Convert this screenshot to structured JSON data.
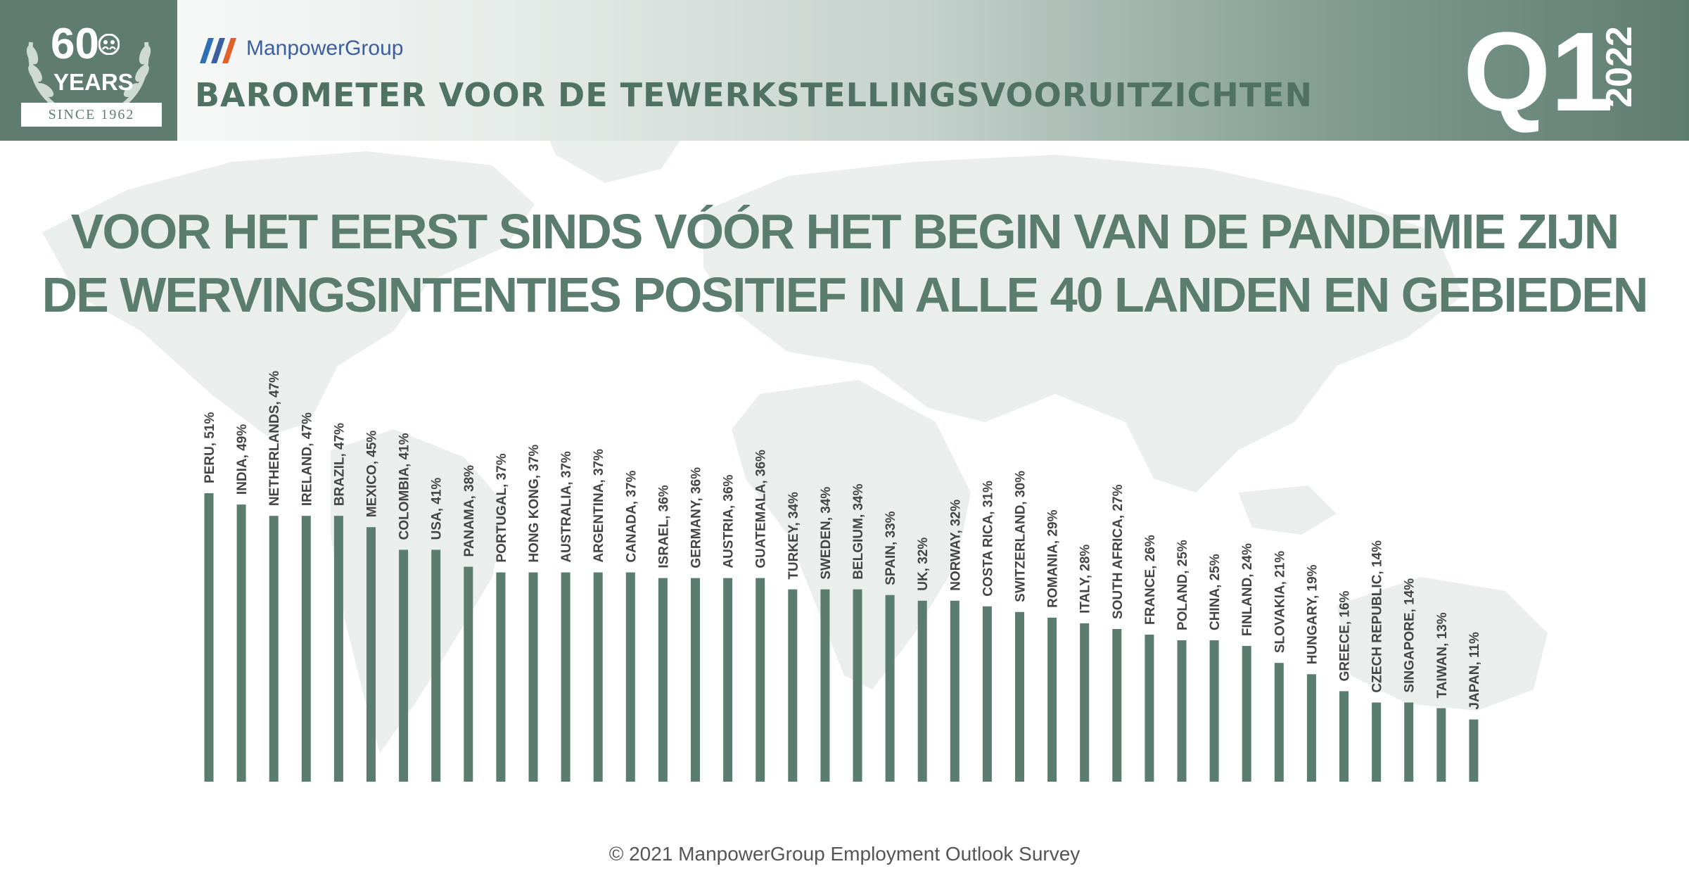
{
  "header": {
    "badge_number": "60",
    "badge_years": "YEARS",
    "badge_since": "SINCE 1962",
    "brand": "ManpowerGroup",
    "barometer": "BAROMETER VOOR DE TEWERKSTELLINGSVOORUITZICHTEN",
    "quarter": "Q1",
    "year": "2022"
  },
  "title_line1": "VOOR HET EERST SINDS VÓÓR HET BEGIN VAN DE PANDEMIE ZIJN",
  "title_line2": "DE WERVINGSINTENTIES POSITIEF IN ALLE 40 LANDEN EN GEBIEDEN",
  "footer": "© 2021 ManpowerGroup Employment Outlook Survey",
  "colors": {
    "bar": "#5a7d6f",
    "accent": "#4f7265",
    "badge": "#5e7d70",
    "label": "#444444"
  },
  "icons": [
    "laurel-wreath-icon",
    "people-icon",
    "manpower-logo-icon"
  ],
  "chart_data": {
    "type": "bar",
    "categories": [
      "PERU",
      "INDIA",
      "NETHERLANDS",
      "IRELAND",
      "BRAZIL",
      "MEXICO",
      "COLOMBIA",
      "USA",
      "PANAMA",
      "PORTUGAL",
      "HONG KONG",
      "AUSTRALIA",
      "ARGENTINA",
      "CANADA",
      "ISRAEL",
      "GERMANY",
      "AUSTRIA",
      "GUATEMALA",
      "TURKEY",
      "SWEDEN",
      "BELGIUM",
      "SPAIN",
      "UK",
      "NORWAY",
      "COSTA RICA",
      "SWITZERLAND",
      "ROMANIA",
      "ITALY",
      "SOUTH AFRICA",
      "FRANCE",
      "POLAND",
      "CHINA",
      "FINLAND",
      "SLOVAKIA",
      "HUNGARY",
      "GREECE",
      "CZECH REPUBLIC",
      "SINGAPORE",
      "TAIWAN",
      "JAPAN"
    ],
    "values": [
      51,
      49,
      47,
      47,
      47,
      45,
      41,
      41,
      38,
      37,
      37,
      37,
      37,
      37,
      36,
      36,
      36,
      36,
      34,
      34,
      34,
      33,
      32,
      32,
      31,
      30,
      29,
      28,
      27,
      26,
      25,
      25,
      24,
      21,
      19,
      16,
      14,
      14,
      13,
      11
    ],
    "labels": [
      "PERU, 51%",
      "INDIA, 49%",
      "NETHERLANDS, 47%",
      "IRELAND, 47%",
      "BRAZIL, 47%",
      "MEXICO, 45%",
      "COLOMBIA, 41%",
      "USA, 41%",
      "PANAMA, 38%",
      "PORTUGAL, 37%",
      "HONG KONG, 37%",
      "AUSTRALIA, 37%",
      "ARGENTINA, 37%",
      "CANADA, 37%",
      "ISRAEL, 36%",
      "GERMANY, 36%",
      "AUSTRIA, 36%",
      "GUATEMALA, 36%",
      "TURKEY, 34%",
      "SWEDEN, 34%",
      "BELGIUM, 34%",
      "SPAIN, 33%",
      "UK, 32%",
      "NORWAY, 32%",
      "COSTA RICA, 31%",
      "SWITZERLAND, 30%",
      "ROMANIA, 29%",
      "ITALY, 28%",
      "SOUTH AFRICA, 27%",
      "FRANCE, 26%",
      "POLAND, 25%",
      "CHINA, 25%",
      "FINLAND, 24%",
      "SLOVAKIA, 21%",
      "HUNGARY, 19%",
      "GREECE, 16%",
      "CZECH REPUBLIC, 14%",
      "SINGAPORE, 14%",
      "TAIWAN, 13%",
      "JAPAN, 11%"
    ],
    "ylim": [
      0,
      51
    ],
    "grid": false,
    "legend": "none"
  }
}
